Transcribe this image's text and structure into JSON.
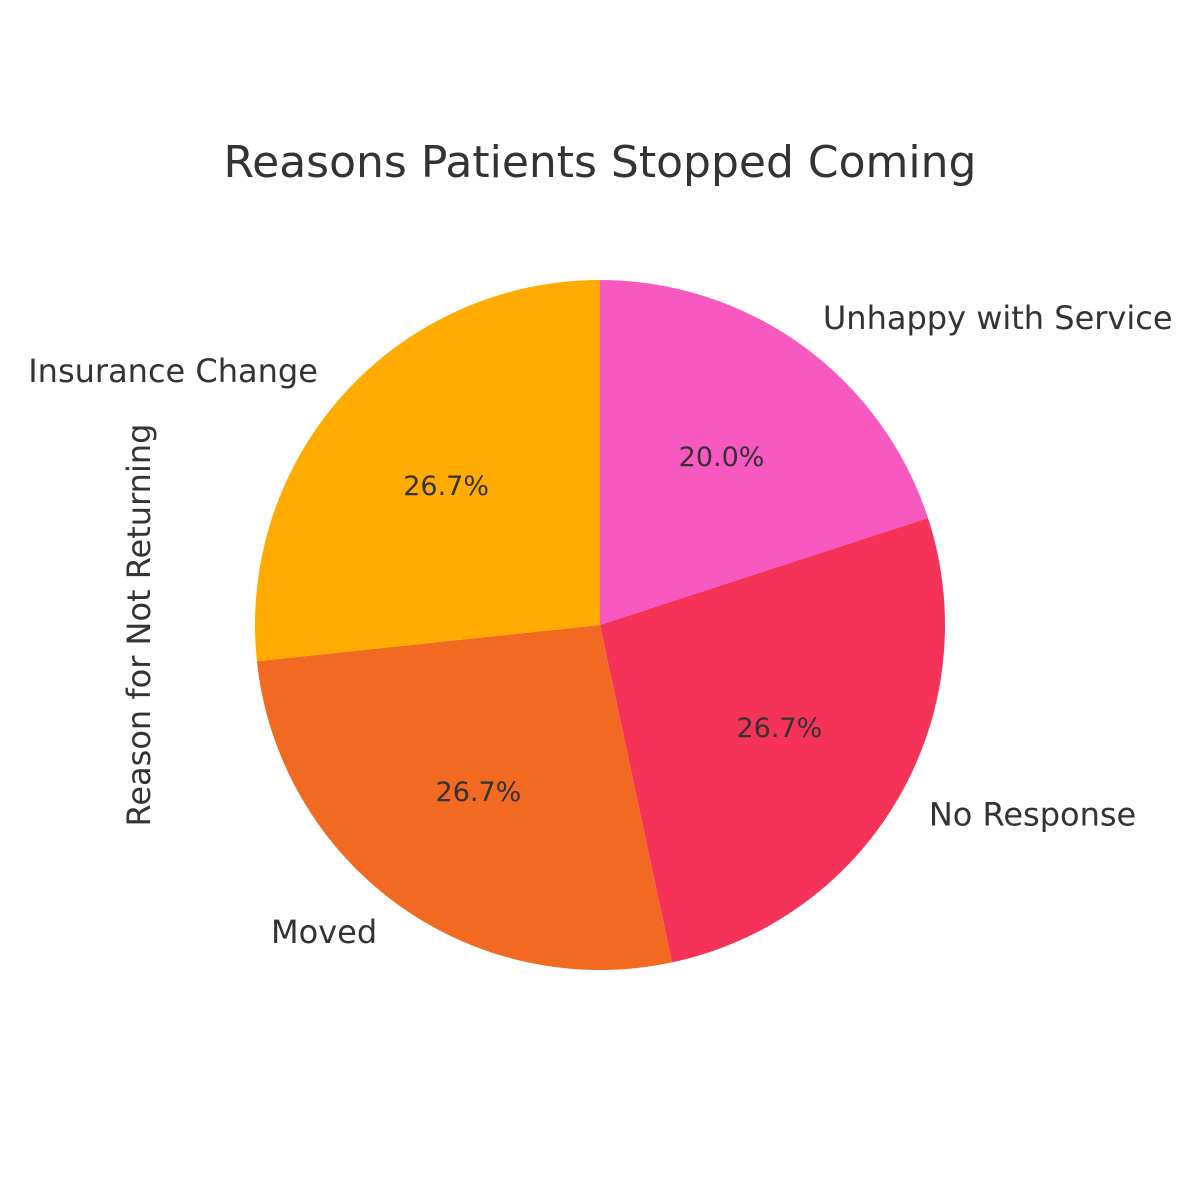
{
  "chart_data": {
    "type": "pie",
    "title": "Reasons Patients Stopped Coming",
    "ylabel": "Reason for Not Returning",
    "categories": [
      "Unhappy with Service",
      "No Response",
      "Moved",
      "Insurance Change"
    ],
    "values": [
      20.0,
      26.7,
      26.7,
      26.7
    ],
    "percent_labels": [
      "20.0%",
      "26.7%",
      "26.7%",
      "26.7%"
    ],
    "colors": [
      "#f759c1",
      "#f53258",
      "#f26a22",
      "#ffab00"
    ],
    "start_angle_deg": 90,
    "direction": "clockwise",
    "legend": "none"
  }
}
